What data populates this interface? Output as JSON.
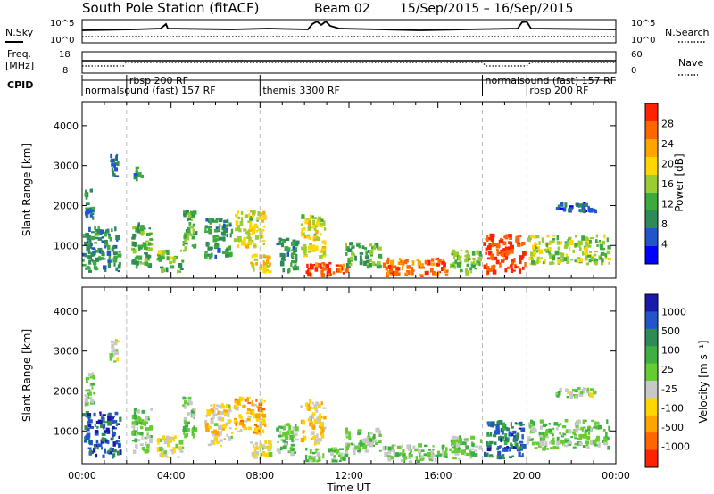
{
  "title": {
    "station": "South Pole Station (fitACF)",
    "beam": "Beam 02",
    "dates": "15/Sep/2015 – 16/Sep/2015"
  },
  "header_panels": {
    "nsky": {
      "left_label": "N.Sky",
      "right_label": "N.Search",
      "tick_top": "10^5",
      "tick_bottom": "10^0"
    },
    "freq": {
      "left_label_1": "Freq.",
      "left_label_2": "[MHz]",
      "right_label": "Nave",
      "tick_left_top": "18",
      "tick_left_bottom": "8",
      "tick_right_top": "60",
      "tick_right_bottom": "0"
    },
    "cpid": {
      "label": "CPID",
      "segments": [
        {
          "x_hours": 0.0,
          "row": 2,
          "text": "normalsound (fast) 157 RF"
        },
        {
          "x_hours": 2.0,
          "row": 1,
          "text": "rbsp 200 RF"
        },
        {
          "x_hours": 8.0,
          "row": 2,
          "text": "themis 3300 RF"
        },
        {
          "x_hours": 18.0,
          "row": 1,
          "text": "normalsound (fast) 157 RF"
        },
        {
          "x_hours": 20.0,
          "row": 2,
          "text": "rbsp 200 RF"
        }
      ]
    }
  },
  "axes": {
    "xlabel": "Time UT",
    "x_ticks": [
      "00:00",
      "04:00",
      "08:00",
      "12:00",
      "16:00",
      "20:00",
      "00:00"
    ],
    "ylabel": "Slant Range [km]",
    "y_ticks": [
      "1000",
      "2000",
      "3000",
      "4000"
    ]
  },
  "colorbars": {
    "power": {
      "label": "Power [dB]",
      "ticks": [
        "4",
        "8",
        "12",
        "16",
        "20",
        "24",
        "28"
      ],
      "colors": [
        "#0000ff",
        "#2255cc",
        "#2e8b57",
        "#3caa3c",
        "#9acd32",
        "#ffd700",
        "#ffa500",
        "#ff6600",
        "#ff2200"
      ]
    },
    "velocity": {
      "label": "Velocity [m s⁻¹]",
      "ticks": [
        "1000",
        "500",
        "100",
        "25",
        "-25",
        "-100",
        "-500",
        "-1000"
      ],
      "colors": [
        "#1a1aaa",
        "#2255cc",
        "#2e8b57",
        "#3cb043",
        "#66cc33",
        "#c8c8c8",
        "#ffd700",
        "#ffa500",
        "#ff6600",
        "#ff2200"
      ]
    }
  },
  "chart_data": {
    "type": "heatmap",
    "title": "South Pole Station (fitACF) Beam 02 15/Sep/2015 – 16/Sep/2015",
    "xlabel": "Time UT",
    "ylabel": "Slant Range [km]",
    "xlim": [
      0,
      24
    ],
    "ylim": [
      180,
      4600
    ],
    "vertical_markers_hours": [
      2,
      8,
      18,
      20
    ],
    "series": [
      {
        "name": "Power [dB]",
        "clim": [
          0,
          32
        ],
        "regions": [
          {
            "t": [
              0.0,
              1.8
            ],
            "r": [
              300,
              1500
            ],
            "v": 10
          },
          {
            "t": [
              0.1,
              0.6
            ],
            "r": [
              1600,
              2500
            ],
            "v": 8
          },
          {
            "t": [
              1.2,
              1.7
            ],
            "r": [
              2700,
              3300
            ],
            "v": 8
          },
          {
            "t": [
              2.2,
              3.2
            ],
            "r": [
              400,
              1600
            ],
            "v": 12
          },
          {
            "t": [
              2.3,
              2.8
            ],
            "r": [
              2600,
              3000
            ],
            "v": 10
          },
          {
            "t": [
              3.3,
              4.6
            ],
            "r": [
              300,
              900
            ],
            "v": 14
          },
          {
            "t": [
              4.5,
              5.2
            ],
            "r": [
              800,
              1900
            ],
            "v": 12
          },
          {
            "t": [
              5.5,
              6.8
            ],
            "r": [
              600,
              1700
            ],
            "v": 10
          },
          {
            "t": [
              6.8,
              8.3
            ],
            "r": [
              900,
              1900
            ],
            "v": 18
          },
          {
            "t": [
              7.5,
              8.6
            ],
            "r": [
              300,
              800
            ],
            "v": 20
          },
          {
            "t": [
              8.7,
              9.8
            ],
            "r": [
              300,
              1200
            ],
            "v": 10
          },
          {
            "t": [
              9.8,
              11.0
            ],
            "r": [
              600,
              1800
            ],
            "v": 18
          },
          {
            "t": [
              10.0,
              12.0
            ],
            "r": [
              200,
              600
            ],
            "v": 28
          },
          {
            "t": [
              11.8,
              13.5
            ],
            "r": [
              400,
              1100
            ],
            "v": 12
          },
          {
            "t": [
              13.5,
              16.5
            ],
            "r": [
              200,
              700
            ],
            "v": 26
          },
          {
            "t": [
              16.5,
              18.0
            ],
            "r": [
              250,
              900
            ],
            "v": 14
          },
          {
            "t": [
              18.0,
              20.0
            ],
            "r": [
              250,
              1300
            ],
            "v": 29
          },
          {
            "t": [
              20.0,
              23.8
            ],
            "r": [
              500,
              1300
            ],
            "v": 16
          },
          {
            "t": [
              21.0,
              23.2
            ],
            "r": [
              1800,
              2100
            ],
            "v": 6
          }
        ]
      },
      {
        "name": "Velocity [m s⁻¹]",
        "clim": [
          -1000,
          1000
        ],
        "regions": [
          {
            "t": [
              0.0,
              1.8
            ],
            "r": [
              300,
              1500
            ],
            "v": 700
          },
          {
            "t": [
              0.1,
              0.6
            ],
            "r": [
              1600,
              2500
            ],
            "v": 100
          },
          {
            "t": [
              1.2,
              1.7
            ],
            "r": [
              2700,
              3300
            ],
            "v": -100
          },
          {
            "t": [
              2.2,
              3.2
            ],
            "r": [
              400,
              1600
            ],
            "v": 80
          },
          {
            "t": [
              3.3,
              4.6
            ],
            "r": [
              300,
              900
            ],
            "v": -150
          },
          {
            "t": [
              4.5,
              5.2
            ],
            "r": [
              800,
              1900
            ],
            "v": 60
          },
          {
            "t": [
              5.5,
              6.8
            ],
            "r": [
              600,
              1700
            ],
            "v": -200
          },
          {
            "t": [
              6.8,
              8.3
            ],
            "r": [
              900,
              1900
            ],
            "v": -400
          },
          {
            "t": [
              7.5,
              8.6
            ],
            "r": [
              300,
              800
            ],
            "v": -150
          },
          {
            "t": [
              8.7,
              9.8
            ],
            "r": [
              300,
              1200
            ],
            "v": 90
          },
          {
            "t": [
              9.8,
              11.0
            ],
            "r": [
              600,
              1800
            ],
            "v": -300
          },
          {
            "t": [
              10.0,
              12.0
            ],
            "r": [
              200,
              600
            ],
            "v": 150
          },
          {
            "t": [
              11.8,
              13.5
            ],
            "r": [
              400,
              1100
            ],
            "v": 50
          },
          {
            "t": [
              13.5,
              16.5
            ],
            "r": [
              200,
              700
            ],
            "v": 120
          },
          {
            "t": [
              16.5,
              18.0
            ],
            "r": [
              250,
              900
            ],
            "v": 60
          },
          {
            "t": [
              18.0,
              20.0
            ],
            "r": [
              250,
              1300
            ],
            "v": 600
          },
          {
            "t": [
              20.0,
              23.8
            ],
            "r": [
              500,
              1300
            ],
            "v": 80
          },
          {
            "t": [
              21.0,
              23.2
            ],
            "r": [
              1800,
              2100
            ],
            "v": 0
          }
        ]
      }
    ]
  }
}
